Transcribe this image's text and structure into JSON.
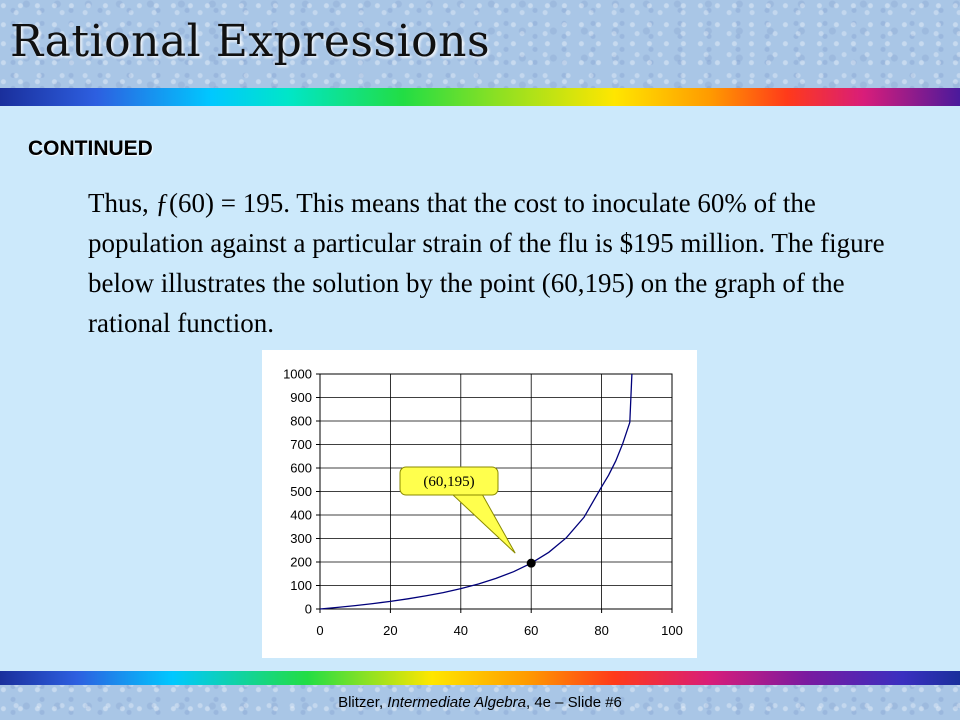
{
  "slide": {
    "title": "Rational Expressions",
    "section_label": "CONTINUED",
    "body_text": "Thus, ƒ(60) = 195.  This means that the cost to inoculate 60% of the population against a particular strain of the flu is $195 million.  The figure below illustrates the solution by the point (60,195) on the graph of the rational function.",
    "footer": {
      "author": "Blitzer,",
      "book": "Intermediate Algebra",
      "rest": ", 4e – Slide #6"
    }
  },
  "chart_data": {
    "type": "line",
    "title": "",
    "xlabel": "",
    "ylabel": "",
    "xlim": [
      0,
      100
    ],
    "ylim": [
      0,
      1000
    ],
    "x_ticks": [
      0,
      20,
      40,
      60,
      80,
      100
    ],
    "y_ticks": [
      0,
      100,
      200,
      300,
      400,
      500,
      600,
      700,
      800,
      900,
      1000
    ],
    "grid": true,
    "series": [
      {
        "color": "#00007a",
        "x": [
          0,
          5,
          10,
          15,
          20,
          25,
          30,
          35,
          40,
          45,
          50,
          55,
          60,
          65,
          70,
          75,
          80,
          82,
          84,
          86,
          88,
          88.6
        ],
        "y": [
          0,
          6.8,
          14.4,
          22.9,
          32.5,
          43.3,
          55.7,
          70,
          86.7,
          106.4,
          130,
          158.9,
          195,
          241.4,
          303.3,
          390,
          520,
          569.4,
          629.2,
          703.6,
          794.1,
          1000
        ]
      }
    ],
    "highlight_point": {
      "x": 60,
      "y": 195
    },
    "annotation": {
      "text": "(60,195)",
      "bg": "#ffff4d"
    }
  }
}
